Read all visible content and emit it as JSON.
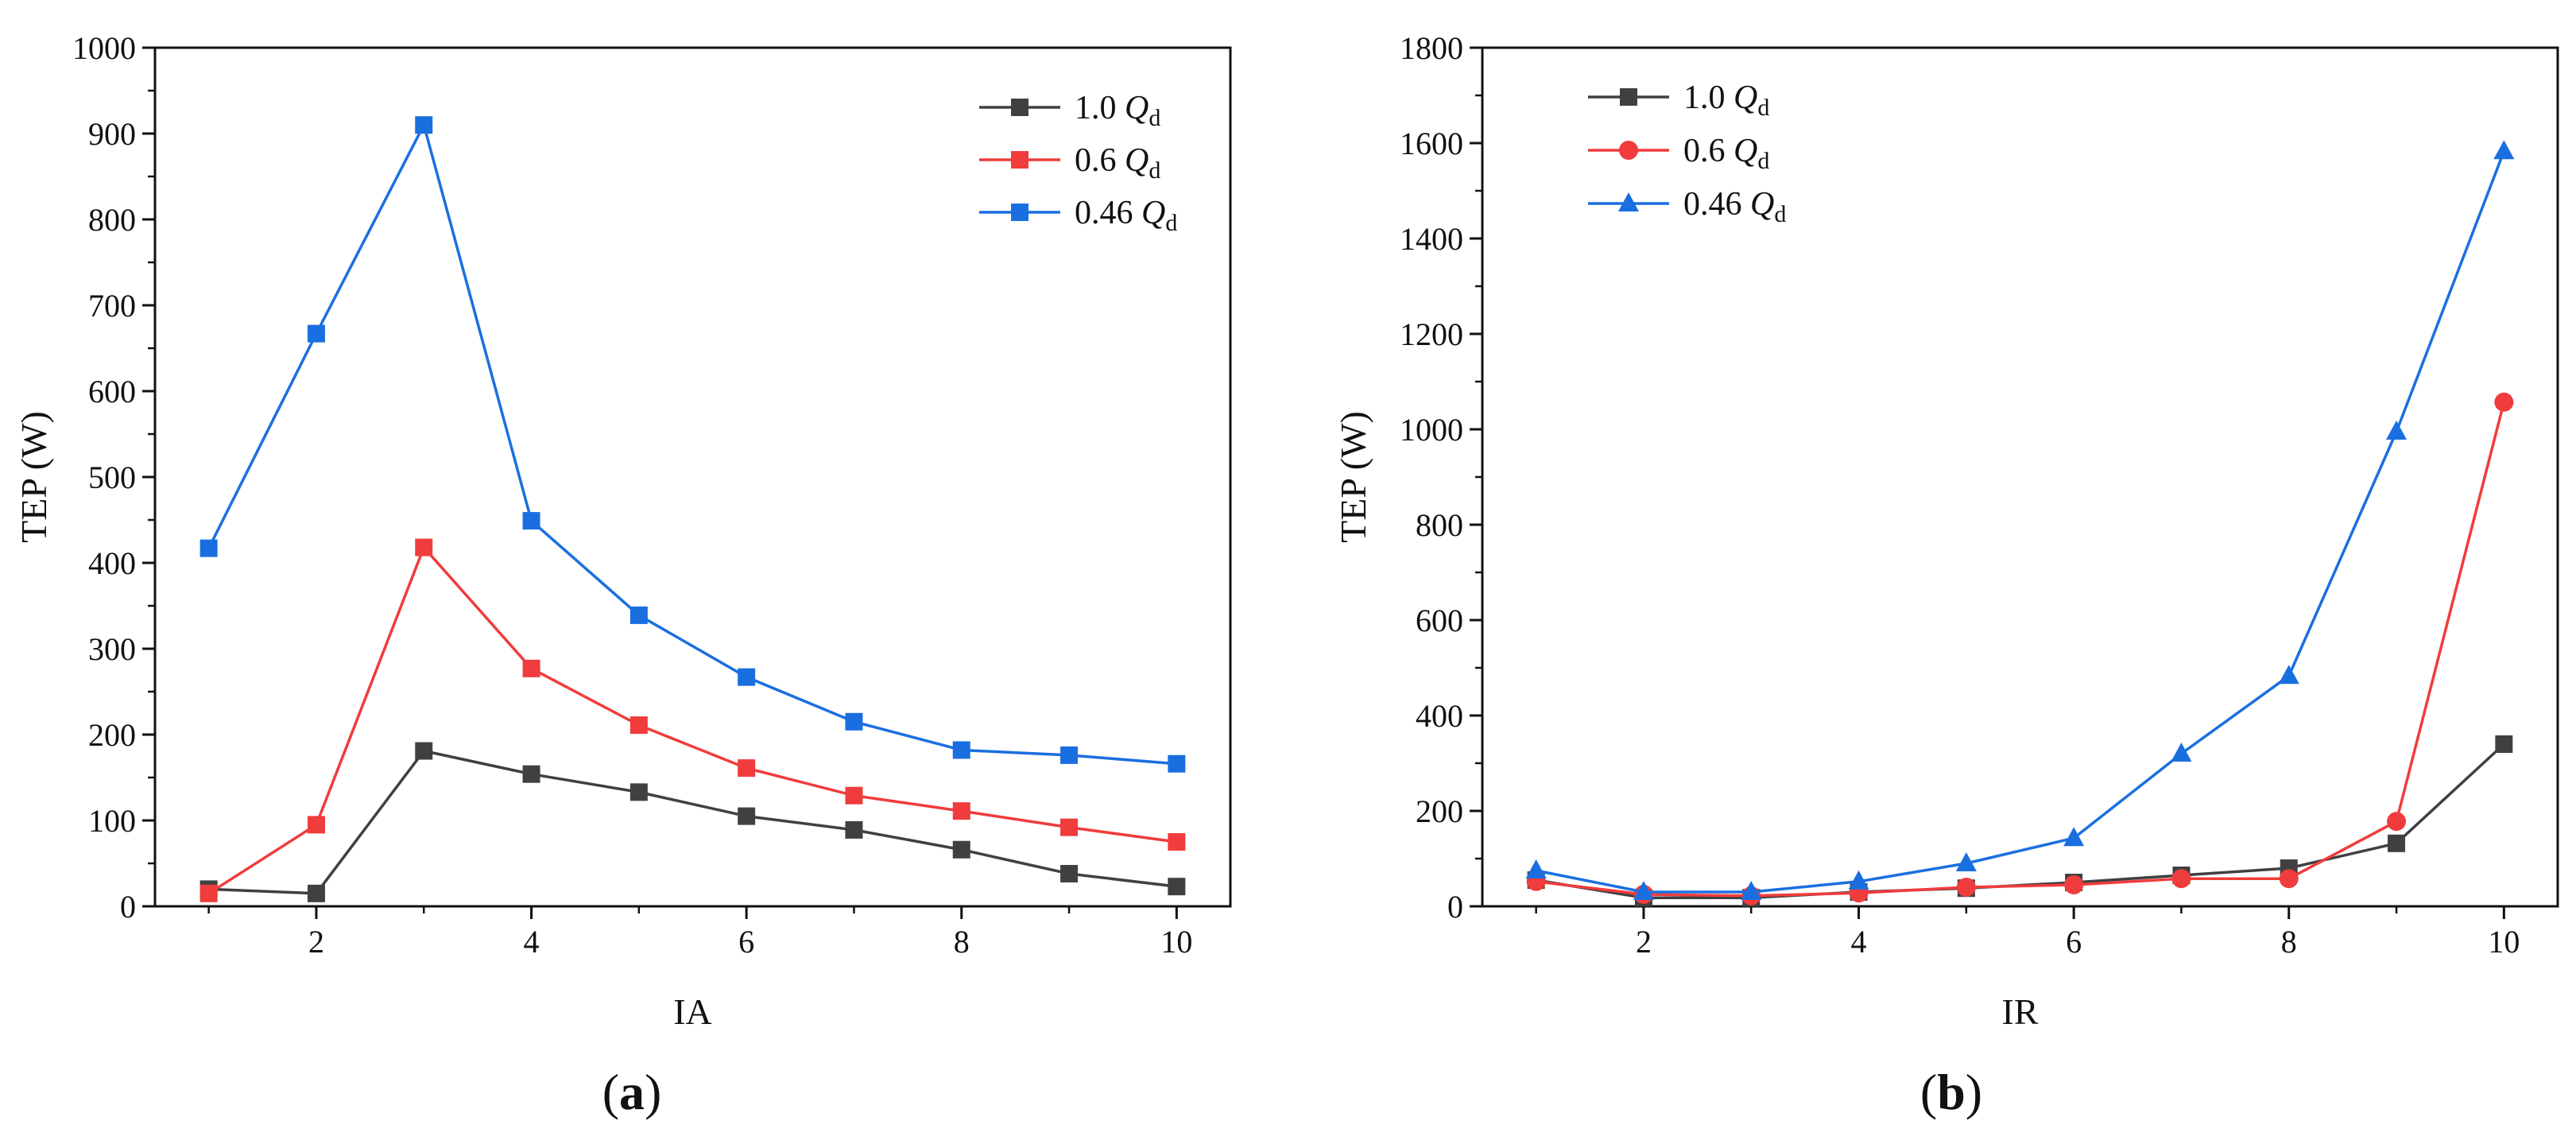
{
  "colors": {
    "s1": "#404040",
    "s2": "#f03c3c",
    "s3": "#1a6fe0",
    "axis": "#111111"
  },
  "chart_data": [
    {
      "type": "line",
      "panel_label": "(a)",
      "xlabel": "IA",
      "ylabel": "TEP (W)",
      "x": [
        1,
        2,
        3,
        4,
        5,
        6,
        7,
        8,
        9,
        10
      ],
      "xticks": [
        2,
        4,
        6,
        8,
        10
      ],
      "yticks": [
        0,
        100,
        200,
        300,
        400,
        500,
        600,
        700,
        800,
        900,
        1000
      ],
      "xlim": [
        0.5,
        10.5
      ],
      "ylim": [
        0,
        1000
      ],
      "legend_position": "top-right",
      "series": [
        {
          "name": "1.0 Q",
          "sub": "d",
          "marker": "square",
          "color": "#404040",
          "values": [
            20,
            15,
            181,
            154,
            133,
            105,
            89,
            66,
            38,
            23
          ]
        },
        {
          "name": "0.6 Q",
          "sub": "d",
          "marker": "square",
          "color": "#f03c3c",
          "values": [
            15,
            95,
            418,
            277,
            211,
            161,
            129,
            111,
            92,
            75
          ]
        },
        {
          "name": "0.46 Q",
          "sub": "d",
          "marker": "square",
          "color": "#1a6fe0",
          "values": [
            417,
            667,
            910,
            449,
            339,
            267,
            215,
            182,
            176,
            166
          ]
        }
      ]
    },
    {
      "type": "line",
      "panel_label": "(b)",
      "xlabel": "IR",
      "ylabel": "TEP (W)",
      "x": [
        1,
        2,
        3,
        4,
        5,
        6,
        7,
        8,
        9,
        10
      ],
      "xticks": [
        2,
        4,
        6,
        8,
        10
      ],
      "yticks": [
        0,
        200,
        400,
        600,
        800,
        1000,
        1200,
        1400,
        1600,
        1800
      ],
      "xlim": [
        0.5,
        10.5
      ],
      "ylim": [
        0,
        1800
      ],
      "legend_position": "top-left",
      "series": [
        {
          "name": "1.0 Q",
          "sub": "d",
          "marker": "square",
          "color": "#404040",
          "values": [
            55,
            18,
            18,
            30,
            38,
            50,
            65,
            80,
            132,
            340
          ]
        },
        {
          "name": "0.6 Q",
          "sub": "d",
          "marker": "circle",
          "color": "#f03c3c",
          "values": [
            52,
            25,
            22,
            28,
            40,
            45,
            58,
            58,
            178,
            1057
          ]
        },
        {
          "name": "0.46 Q",
          "sub": "d",
          "marker": "triangle",
          "color": "#1a6fe0",
          "values": [
            75,
            30,
            30,
            52,
            90,
            143,
            320,
            483,
            995,
            1583
          ]
        }
      ]
    }
  ]
}
